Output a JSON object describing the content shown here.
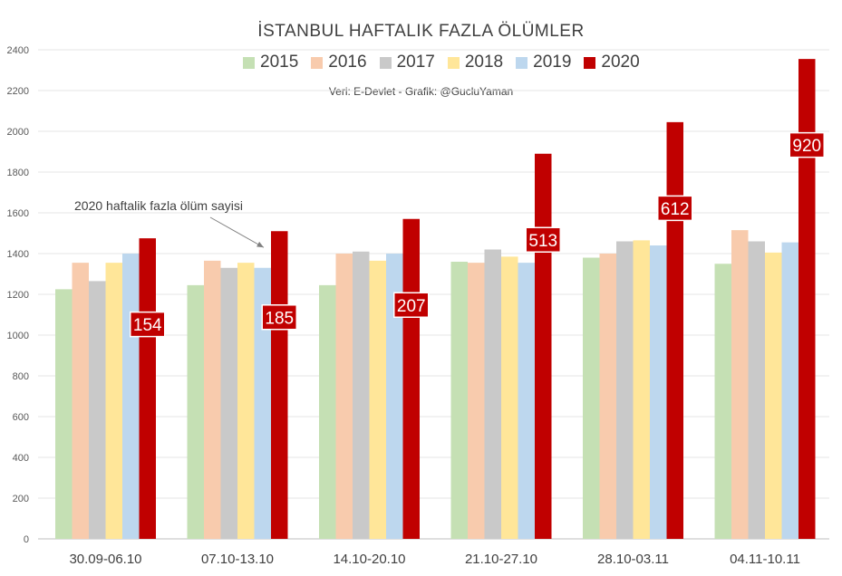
{
  "chart_data": {
    "type": "bar",
    "title": "İSTANBUL  HAFTALIK  FAZLA ÖLÜMLER",
    "subtitle": "Veri: E-Devlet - Grafik: @GucluYaman",
    "categories": [
      "30.09-06.10",
      "07.10-13.10",
      "14.10-20.10",
      "21.10-27.10",
      "28.10-03.11",
      "04.11-10.11"
    ],
    "ylim": [
      0,
      2400
    ],
    "yticks": [
      "0",
      "200",
      "400",
      "600",
      "800",
      "1000",
      "1200",
      "1400",
      "1600",
      "1800",
      "2000",
      "2200",
      "2400"
    ],
    "grid": true,
    "legend_position": "top",
    "series": [
      {
        "name": "2015",
        "color": "#c5e0b4",
        "values": [
          1225,
          1245,
          1245,
          1360,
          1380,
          1350
        ]
      },
      {
        "name": "2016",
        "color": "#f8cbad",
        "values": [
          1355,
          1365,
          1400,
          1355,
          1400,
          1515
        ]
      },
      {
        "name": "2017",
        "color": "#c9c9c9",
        "values": [
          1265,
          1330,
          1410,
          1420,
          1460,
          1460
        ]
      },
      {
        "name": "2018",
        "color": "#ffe699",
        "values": [
          1355,
          1355,
          1365,
          1385,
          1465,
          1405
        ]
      },
      {
        "name": "2019",
        "color": "#bdd7ee",
        "values": [
          1400,
          1330,
          1400,
          1355,
          1440,
          1455
        ]
      },
      {
        "name": "2020",
        "color": "#c00000",
        "values": [
          1475,
          1510,
          1570,
          1890,
          2045,
          2355
        ]
      }
    ],
    "data_labels": {
      "series": "2020",
      "values": [
        "154",
        "185",
        "207",
        "513",
        "612",
        "920"
      ]
    },
    "annotation": {
      "text": "2020 haftalik fazla ölüm sayisi",
      "target_category": "07.10-13.10"
    }
  }
}
